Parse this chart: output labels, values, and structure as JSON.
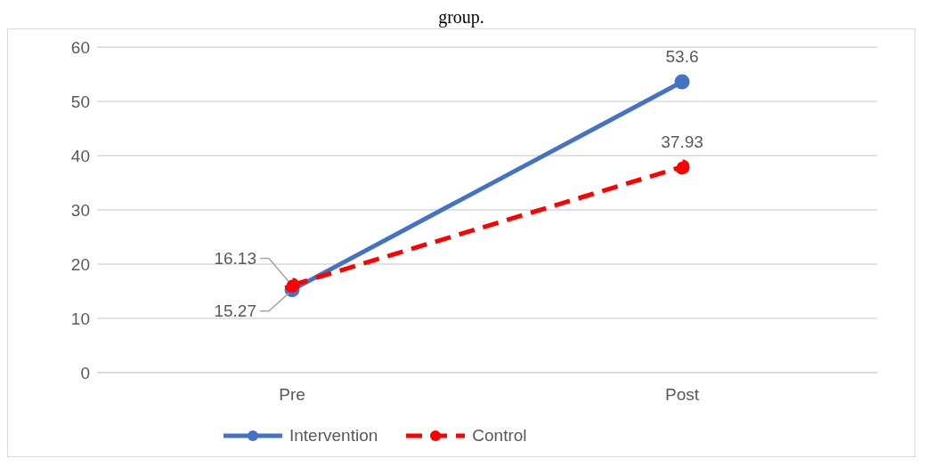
{
  "chart_data": {
    "type": "line",
    "annotations": [
      "group."
    ],
    "categories": [
      "Pre",
      "Post"
    ],
    "series": [
      {
        "name": "Intervention",
        "color": "#4472c4",
        "values": [
          15.27,
          53.6
        ],
        "line_style": "solid"
      },
      {
        "name": "Control",
        "color": "#ff0000",
        "values": [
          16.13,
          37.93
        ],
        "line_style": "dashed"
      }
    ],
    "ylim": [
      0,
      60
    ],
    "yticks": [
      0,
      10,
      20,
      30,
      40,
      50,
      60
    ],
    "grid": "y",
    "legend": "bottom",
    "marker": "circle",
    "data_labels": true
  }
}
